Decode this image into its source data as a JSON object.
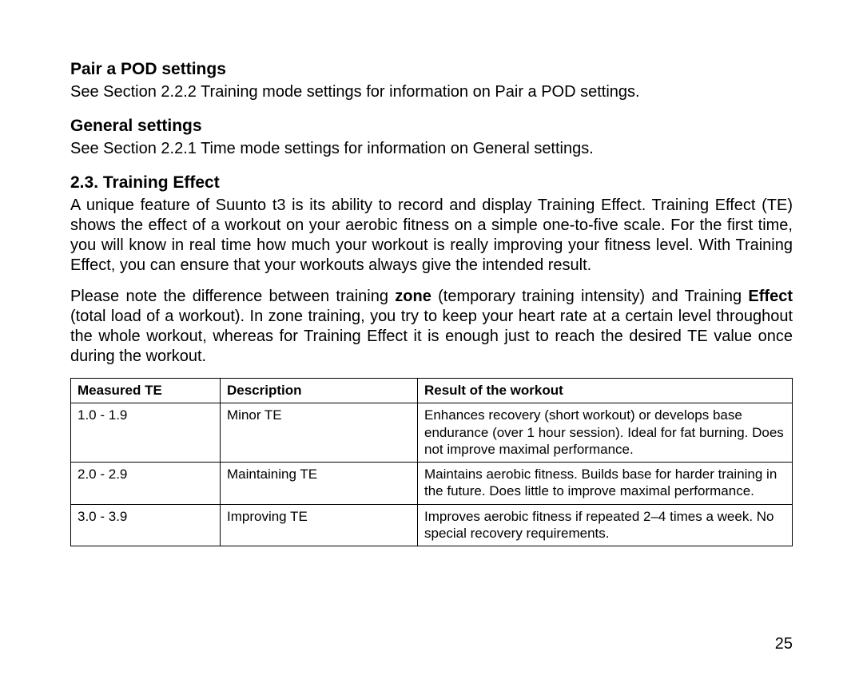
{
  "sections": {
    "pod": {
      "title": "Pair a POD settings",
      "text": "See Section 2.2.2 Training mode settings for information on Pair a POD settings."
    },
    "general": {
      "title": "General settings",
      "text": "See Section 2.2.1 Time mode settings for information on General settings."
    },
    "training_effect": {
      "title": "2.3. Training Effect",
      "p1": "A unique feature of Suunto t3 is its ability to record and display Training Effect. Training Effect (TE) shows the effect of a workout on your aerobic fitness on a simple one-to-five scale. For the first time, you will know in real time how much your workout is really improving your fitness level. With Training Effect, you can ensure that your workouts always give the intended result.",
      "p2_pre": "Please note the difference between training ",
      "p2_b1": "zone",
      "p2_mid": " (temporary training intensity) and Training ",
      "p2_b2": "Effect",
      "p2_post": " (total load of a workout). In zone training, you try to keep your heart rate at a certain level throughout the whole workout, whereas for Training Effect it is enough just to reach the desired TE value once during the workout."
    }
  },
  "table": {
    "columns": [
      "Measured TE",
      "Description",
      "Result of the workout"
    ],
    "rows": [
      [
        "1.0 - 1.9",
        "Minor TE",
        "Enhances recovery (short workout) or develops base endurance (over 1 hour session). Ideal for fat burning. Does not improve maximal performance."
      ],
      [
        "2.0 - 2.9",
        "Maintaining TE",
        "Maintains aerobic fitness. Builds base for harder training in the future. Does little to improve maximal performance."
      ],
      [
        "3.0 - 3.9",
        "Improving TE",
        "Improves aerobic fitness if repeated 2–4 times a week. No special recovery requirements."
      ]
    ]
  },
  "page_number": "25"
}
